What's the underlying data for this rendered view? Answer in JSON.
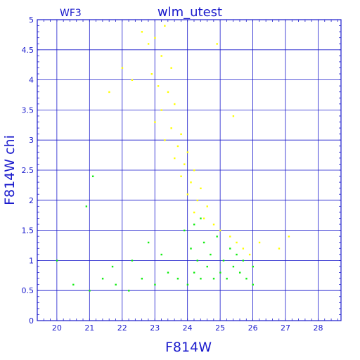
{
  "header": {
    "left_label": "WF3",
    "title": "wlm_utest"
  },
  "chart_data": {
    "type": "scatter",
    "title": "wlm_utest",
    "panel_label": "WF3",
    "xlabel": "F814W",
    "ylabel": "F814W  chi",
    "xlim": [
      19.4,
      28.7
    ],
    "ylim": [
      0,
      5
    ],
    "x_ticks": [
      "20",
      "21",
      "22",
      "23",
      "24",
      "25",
      "26",
      "27",
      "28"
    ],
    "y_ticks": [
      "0",
      "0.5",
      "1",
      "1.5",
      "2",
      "2.5",
      "3",
      "3.5",
      "4",
      "4.5",
      "5"
    ],
    "grid": true,
    "colors": {
      "axis": "#1a1acc",
      "grid": "#1a1acc"
    },
    "series": [
      {
        "color": "#ffff00",
        "points": [
          [
            22.6,
            4.8
          ],
          [
            22.8,
            4.6
          ],
          [
            23.0,
            4.7
          ],
          [
            23.2,
            4.4
          ],
          [
            23.3,
            4.9
          ],
          [
            23.5,
            4.2
          ],
          [
            22.9,
            4.1
          ],
          [
            23.1,
            3.9
          ],
          [
            23.4,
            3.8
          ],
          [
            23.6,
            3.6
          ],
          [
            23.2,
            3.5
          ],
          [
            23.0,
            3.3
          ],
          [
            23.5,
            3.2
          ],
          [
            23.8,
            3.1
          ],
          [
            23.3,
            3.0
          ],
          [
            23.7,
            2.9
          ],
          [
            24.0,
            2.8
          ],
          [
            23.6,
            2.7
          ],
          [
            23.9,
            2.6
          ],
          [
            24.2,
            2.5
          ],
          [
            23.8,
            2.4
          ],
          [
            24.1,
            2.3
          ],
          [
            24.4,
            2.2
          ],
          [
            24.0,
            2.1
          ],
          [
            24.3,
            2.0
          ],
          [
            24.6,
            1.9
          ],
          [
            24.2,
            1.8
          ],
          [
            24.5,
            1.7
          ],
          [
            24.8,
            1.6
          ],
          [
            25.0,
            1.5
          ],
          [
            25.3,
            1.4
          ],
          [
            25.5,
            1.3
          ],
          [
            25.7,
            1.2
          ],
          [
            25.9,
            1.1
          ],
          [
            26.2,
            1.3
          ],
          [
            26.8,
            1.2
          ],
          [
            27.1,
            1.4
          ],
          [
            22.3,
            4.0
          ],
          [
            22.0,
            4.2
          ],
          [
            21.6,
            3.8
          ],
          [
            24.9,
            4.6
          ],
          [
            25.4,
            3.4
          ]
        ]
      },
      {
        "color": "#11ee11",
        "points": [
          [
            20.5,
            0.6
          ],
          [
            21.0,
            0.5
          ],
          [
            21.4,
            0.7
          ],
          [
            21.8,
            0.6
          ],
          [
            22.2,
            0.5
          ],
          [
            22.6,
            0.7
          ],
          [
            23.0,
            0.6
          ],
          [
            23.4,
            0.8
          ],
          [
            23.7,
            0.7
          ],
          [
            24.0,
            0.6
          ],
          [
            24.2,
            0.8
          ],
          [
            24.4,
            0.7
          ],
          [
            24.6,
            0.9
          ],
          [
            24.8,
            0.7
          ],
          [
            25.0,
            0.8
          ],
          [
            25.2,
            0.7
          ],
          [
            25.4,
            0.9
          ],
          [
            25.6,
            0.8
          ],
          [
            25.8,
            0.7
          ],
          [
            26.0,
            0.9
          ],
          [
            24.3,
            1.0
          ],
          [
            24.7,
            1.1
          ],
          [
            25.1,
            1.0
          ],
          [
            25.5,
            1.1
          ],
          [
            24.1,
            1.2
          ],
          [
            24.5,
            1.3
          ],
          [
            24.9,
            1.4
          ],
          [
            25.3,
            1.2
          ],
          [
            23.2,
            1.1
          ],
          [
            22.8,
            1.3
          ],
          [
            22.3,
            1.0
          ],
          [
            21.7,
            0.9
          ],
          [
            23.9,
            1.5
          ],
          [
            24.2,
            1.6
          ],
          [
            24.4,
            1.7
          ],
          [
            25.7,
            1.0
          ],
          [
            20.9,
            1.9
          ],
          [
            21.1,
            2.4
          ],
          [
            20.0,
            1.0
          ],
          [
            26.0,
            0.6
          ]
        ]
      }
    ]
  }
}
